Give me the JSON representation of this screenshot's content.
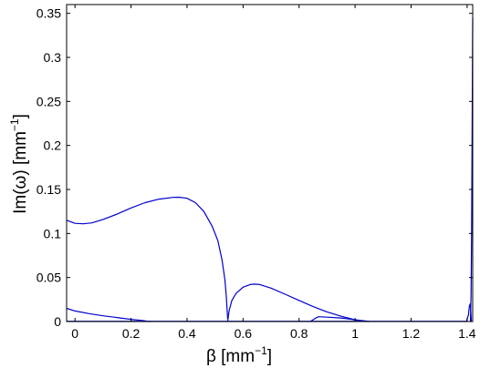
{
  "chart_data": {
    "type": "line",
    "title": "",
    "xlabel": {
      "main": "β [mm",
      "sup": "−1",
      "tail": "]"
    },
    "ylabel": {
      "main": "Im(ω) [mm",
      "sup": "−1",
      "tail": "]"
    },
    "xlim": [
      -0.03,
      1.42
    ],
    "ylim": [
      0,
      0.36
    ],
    "xticks": [
      {
        "value": 0,
        "label": "0"
      },
      {
        "value": 0.2,
        "label": "0.2"
      },
      {
        "value": 0.4,
        "label": "0.4"
      },
      {
        "value": 0.6,
        "label": "0.6"
      },
      {
        "value": 0.8,
        "label": "0.8"
      },
      {
        "value": 1,
        "label": "1"
      },
      {
        "value": 1.2,
        "label": "1.2"
      },
      {
        "value": 1.4,
        "label": "1.4"
      }
    ],
    "yticks": [
      {
        "value": 0,
        "label": "0"
      },
      {
        "value": 0.05,
        "label": "0.05"
      },
      {
        "value": 0.1,
        "label": "0.1"
      },
      {
        "value": 0.15,
        "label": "0.15"
      },
      {
        "value": 0.2,
        "label": "0.2"
      },
      {
        "value": 0.25,
        "label": "0.25"
      },
      {
        "value": 0.3,
        "label": "0.3"
      },
      {
        "value": 0.35,
        "label": "0.35"
      }
    ],
    "grid": false,
    "line_color": "#0000cc",
    "series": [
      {
        "x": [
          -0.03,
          0.0,
          0.03,
          0.06,
          0.1,
          0.15,
          0.2,
          0.25,
          0.3,
          0.35,
          0.37,
          0.4,
          0.43,
          0.46,
          0.49,
          0.51,
          0.525,
          0.535,
          0.54,
          0.545
        ],
        "y": [
          0.115,
          0.1115,
          0.111,
          0.112,
          0.116,
          0.122,
          0.129,
          0.135,
          0.139,
          0.141,
          0.1412,
          0.14,
          0.135,
          0.125,
          0.108,
          0.092,
          0.07,
          0.048,
          0.03,
          0.003
        ]
      },
      {
        "x": [
          0.545,
          0.55,
          0.56,
          0.575,
          0.6,
          0.625,
          0.64,
          0.66,
          0.7,
          0.75,
          0.8,
          0.85,
          0.9,
          0.95,
          1.0,
          1.03,
          1.05
        ],
        "y": [
          0.0,
          0.012,
          0.024,
          0.032,
          0.039,
          0.042,
          0.0425,
          0.042,
          0.038,
          0.031,
          0.024,
          0.017,
          0.011,
          0.006,
          0.002,
          0.0005,
          0.0
        ]
      },
      {
        "x": [
          -0.03,
          0.0,
          0.05,
          0.1,
          0.15,
          0.2,
          0.24,
          0.26,
          0.27
        ],
        "y": [
          0.015,
          0.012,
          0.009,
          0.0065,
          0.0045,
          0.0025,
          0.0012,
          0.0003,
          0.0
        ]
      },
      {
        "x": [
          0.84,
          0.86,
          0.87,
          0.9,
          0.95,
          1.0,
          1.04,
          1.05
        ],
        "y": [
          0.0,
          0.004,
          0.0055,
          0.005,
          0.004,
          0.002,
          0.0005,
          0.0
        ]
      },
      {
        "x": [
          -0.03,
          0.2,
          0.4,
          0.6,
          0.8,
          1.0,
          1.2,
          1.38,
          1.4
        ],
        "y": [
          0.0003,
          0.0003,
          0.0003,
          0.0003,
          0.0003,
          0.0003,
          0.0003,
          0.0003,
          0.0003
        ]
      },
      {
        "x": [
          1.398,
          1.405,
          1.408,
          1.411,
          1.413,
          1.415
        ],
        "y": [
          0.0,
          0.008,
          0.017,
          0.02,
          0.012,
          0.0
        ]
      },
      {
        "x": [
          1.412,
          1.414,
          1.416,
          1.418,
          1.42
        ],
        "y": [
          0.0,
          0.03,
          0.1,
          0.22,
          0.345
        ]
      }
    ]
  }
}
